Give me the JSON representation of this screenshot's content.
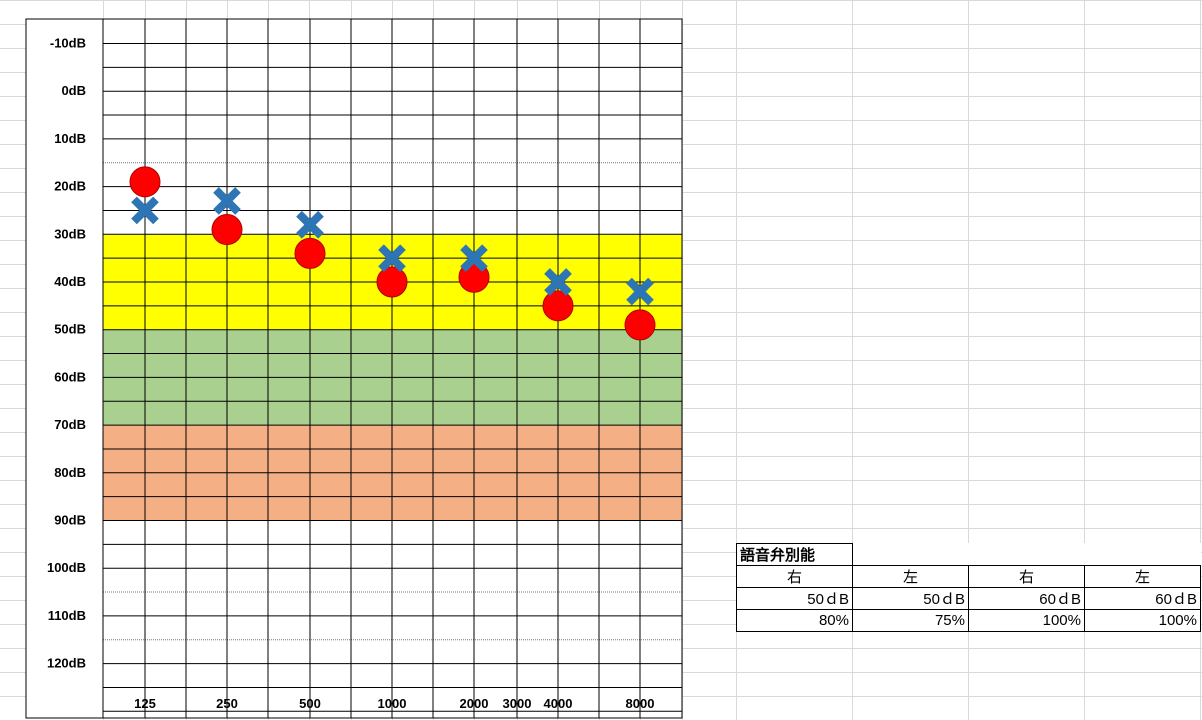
{
  "chart_data": {
    "type": "scatter",
    "title": "",
    "xlabel": "",
    "ylabel": "",
    "x_tick_labels": [
      "125",
      "250",
      "500",
      "1000",
      "2000",
      "3000",
      "4000",
      "8000"
    ],
    "y_tick_labels": [
      "-10dB",
      "0dB",
      "10dB",
      "20dB",
      "30dB",
      "40dB",
      "50dB",
      "60dB",
      "70dB",
      "80dB",
      "90dB",
      "100dB",
      "110dB",
      "120dB"
    ],
    "ylim": [
      -15,
      130
    ],
    "y_inverted": true,
    "bands": [
      {
        "from": 30,
        "to": 50,
        "color": "#ffff00"
      },
      {
        "from": 50,
        "to": 70,
        "color": "#a9d08e"
      },
      {
        "from": 70,
        "to": 90,
        "color": "#f4b084"
      }
    ],
    "series": [
      {
        "marker": "circle",
        "color": "#ff0000",
        "points": [
          {
            "x": "125",
            "y": 19
          },
          {
            "x": "250",
            "y": 29
          },
          {
            "x": "500",
            "y": 34
          },
          {
            "x": "1000",
            "y": 40
          },
          {
            "x": "2000",
            "y": 39
          },
          {
            "x": "4000",
            "y": 45
          },
          {
            "x": "8000",
            "y": 49
          }
        ]
      },
      {
        "marker": "x",
        "color": "#2e75b6",
        "points": [
          {
            "x": "125",
            "y": 25
          },
          {
            "x": "250",
            "y": 23
          },
          {
            "x": "500",
            "y": 28
          },
          {
            "x": "1000",
            "y": 35
          },
          {
            "x": "2000",
            "y": 35
          },
          {
            "x": "4000",
            "y": 40
          },
          {
            "x": "8000",
            "y": 42
          }
        ]
      }
    ]
  },
  "speech_table": {
    "title": "語音弁別能",
    "headers": [
      "右",
      "左",
      "右",
      "左"
    ],
    "levels": [
      "50ｄB",
      "50ｄB",
      "60ｄB",
      "60ｄB"
    ],
    "scores": [
      "80%",
      "75%",
      "100%",
      "100%"
    ]
  },
  "colors": {
    "sheet_grid": "#d9d9d9",
    "chart_border": "#000000"
  }
}
